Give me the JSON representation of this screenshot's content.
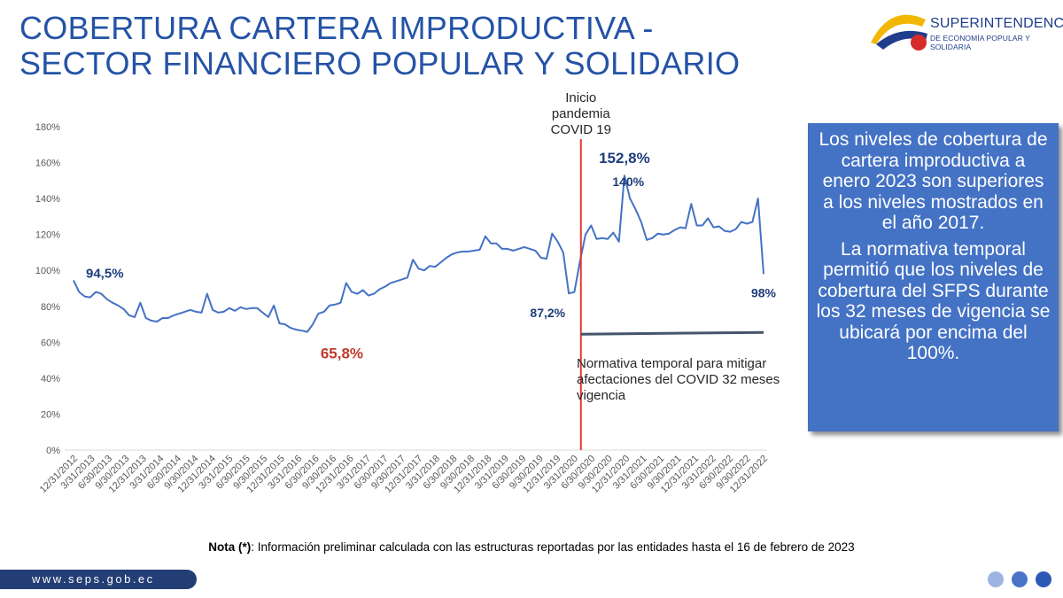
{
  "header": {
    "title_line1": "COBERTURA CARTERA IMPRODUCTIVA -",
    "title_line2": "SECTOR FINANCIERO POPULAR Y SOLIDARIO"
  },
  "logo": {
    "name": "SUPERINTENDENCIA",
    "subtitle": "DE ECONOMÍA POPULAR Y SOLIDARIA",
    "colors": [
      "#f2b705",
      "#1f3d8a",
      "#d62b2b"
    ]
  },
  "note_box": {
    "paragraph1": "Los niveles de cobertura de cartera improductiva a enero 2023 son superiores a los niveles mostrados en el año 2017.",
    "paragraph2": "La normativa temporal permitió que los niveles de cobertura del SFPS durante los 32 meses de vigencia se ubicará por encima del 100%.",
    "color": "#4472c4"
  },
  "footnote": {
    "label": "Nota (*)",
    "text": ": Información preliminar calculada con las estructuras reportadas por las entidades hasta el 16 de febrero de 2023"
  },
  "footer": {
    "url": "www.seps.gob.ec"
  },
  "chart_data": {
    "type": "line",
    "title": "",
    "xlabel": "",
    "ylabel": "",
    "ylim": [
      0,
      180
    ],
    "y_ticks": [
      "0%",
      "20%",
      "40%",
      "60%",
      "80%",
      "100%",
      "120%",
      "140%",
      "160%",
      "180%"
    ],
    "x_tick_labels": [
      "12/31/2012",
      "3/31/2013",
      "6/30/2013",
      "9/30/2013",
      "12/31/2013",
      "3/31/2014",
      "6/30/2014",
      "9/30/2014",
      "12/31/2014",
      "3/31/2015",
      "6/30/2015",
      "9/30/2015",
      "12/31/2015",
      "3/31/2016",
      "6/30/2016",
      "9/30/2016",
      "12/31/2016",
      "3/31/2017",
      "6/30/2017",
      "9/30/2017",
      "12/31/2017",
      "3/31/2018",
      "6/30/2018",
      "9/30/2018",
      "12/31/2018",
      "3/31/2019",
      "6/30/2019",
      "9/30/2019",
      "12/31/2019",
      "3/31/2020",
      "6/30/2020",
      "9/30/2020",
      "12/31/2020",
      "3/31/2021",
      "6/30/2021",
      "9/30/2021",
      "12/31/2021",
      "3/31/2022",
      "6/30/2022",
      "9/30/2022",
      "12/31/2022"
    ],
    "grid": false,
    "legend": "none",
    "series_color": "#4472c4",
    "series": [
      {
        "values": [
          94.5,
          88,
          85.5,
          85,
          88,
          87,
          84,
          82,
          80.5,
          78.5,
          75,
          74,
          82,
          73.5,
          72,
          71.5,
          73.5,
          73.5,
          75,
          76,
          77,
          78,
          77,
          76.5,
          87,
          78,
          76.5,
          77,
          79,
          77.5,
          79.5,
          78.5,
          79,
          79,
          76.5,
          74,
          80.5,
          70.5,
          70,
          68,
          67,
          66.5,
          65.8,
          70,
          76,
          77,
          80.5,
          81,
          82,
          93,
          88,
          87,
          89,
          86,
          87,
          89.5,
          91,
          93,
          94,
          95,
          96,
          106,
          101,
          100,
          102.5,
          102,
          104.5,
          107,
          109,
          110,
          110.5,
          110.5,
          111,
          111.5,
          119,
          115,
          115,
          112,
          112,
          111,
          112,
          113,
          112,
          111,
          107,
          106.5,
          120.5,
          116,
          110,
          87.2,
          88,
          105,
          120,
          125,
          117.5,
          118,
          117.5,
          121,
          116,
          152.8,
          140,
          134,
          127,
          117,
          118,
          120.5,
          120,
          120.5,
          122.5,
          124,
          123.5,
          137,
          125,
          125,
          129,
          124,
          124.5,
          122,
          121.5,
          123,
          127,
          126,
          127,
          140,
          98
        ]
      }
    ],
    "data_labels": [
      {
        "text": "94,5%",
        "value": 94.5,
        "color": "#1f3d7a"
      },
      {
        "text": "65,8%",
        "value": 65.8,
        "color": "#c0392b"
      },
      {
        "text": "87,2%",
        "value": 87.2,
        "color": "#1f3d7a"
      },
      {
        "text": "152,8%",
        "value": 152.8,
        "color": "#1f3d7a"
      },
      {
        "text": "140%",
        "value": 140,
        "color": "#1f3d7a"
      },
      {
        "text": "98%",
        "value": 98,
        "color": "#1f3d7a"
      }
    ],
    "annotations": {
      "pandemic": {
        "lines": [
          "Inicio",
          "pandemia",
          "COVID 19"
        ],
        "x_label": "3/31/2020",
        "color": "#e53935"
      },
      "regulation": {
        "lines": [
          "Normativa temporal para mitigar",
          "afectaciones del COVID 32 meses",
          "vigencia"
        ],
        "value": 65,
        "color": "#44546a"
      }
    }
  }
}
